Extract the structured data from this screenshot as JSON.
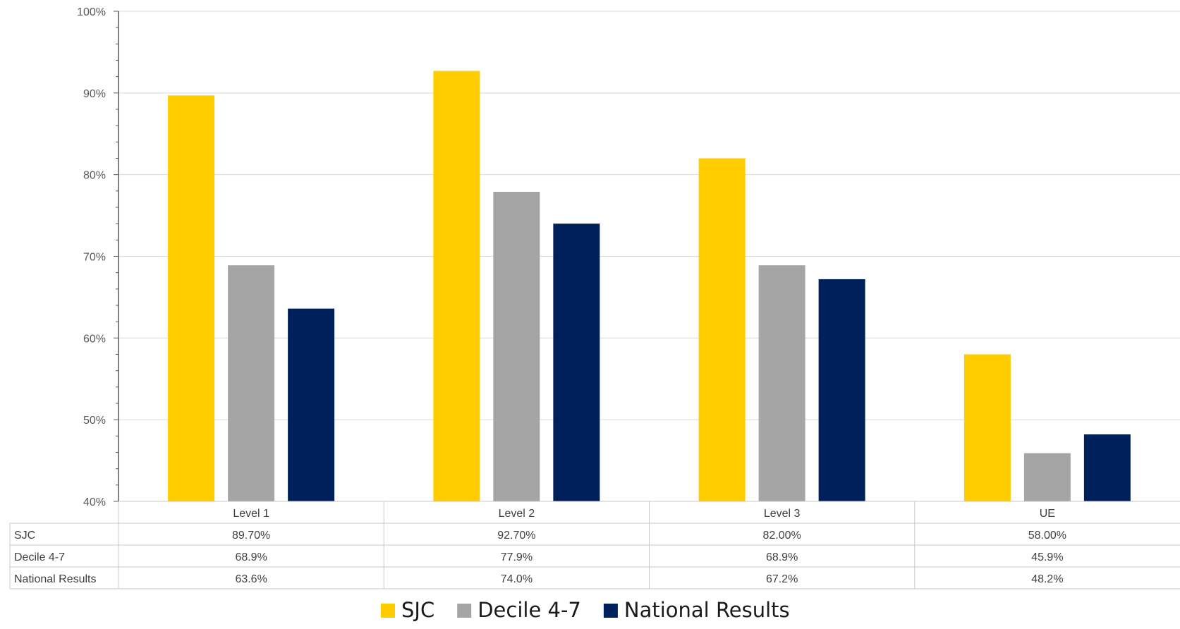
{
  "chart_data": {
    "type": "bar",
    "categories": [
      "Level 1",
      "Level 2",
      "Level 3",
      "UE"
    ],
    "series": [
      {
        "name": "SJC",
        "values": [
          89.7,
          92.7,
          82.0,
          58.0
        ],
        "table_labels": [
          "89.70%",
          "92.70%",
          "82.00%",
          "58.00%"
        ],
        "color": "#FFCC00"
      },
      {
        "name": "Decile 4-7",
        "values": [
          68.9,
          77.9,
          68.9,
          45.9
        ],
        "table_labels": [
          "68.9%",
          "77.9%",
          "68.9%",
          "45.9%"
        ],
        "color": "#A5A5A5"
      },
      {
        "name": "National Results",
        "values": [
          63.6,
          74.0,
          67.2,
          48.2
        ],
        "table_labels": [
          "63.6%",
          "74.0%",
          "67.2%",
          "48.2%"
        ],
        "color": "#00205B"
      }
    ],
    "ylim": [
      40,
      100
    ],
    "yticks": [
      40,
      50,
      60,
      70,
      80,
      90,
      100
    ],
    "ytick_labels": [
      "40%",
      "50%",
      "60%",
      "70%",
      "80%",
      "90%",
      "100%"
    ],
    "minor_tick_step": 2,
    "grid": true,
    "data_table": true,
    "legend": "bottom-center"
  }
}
